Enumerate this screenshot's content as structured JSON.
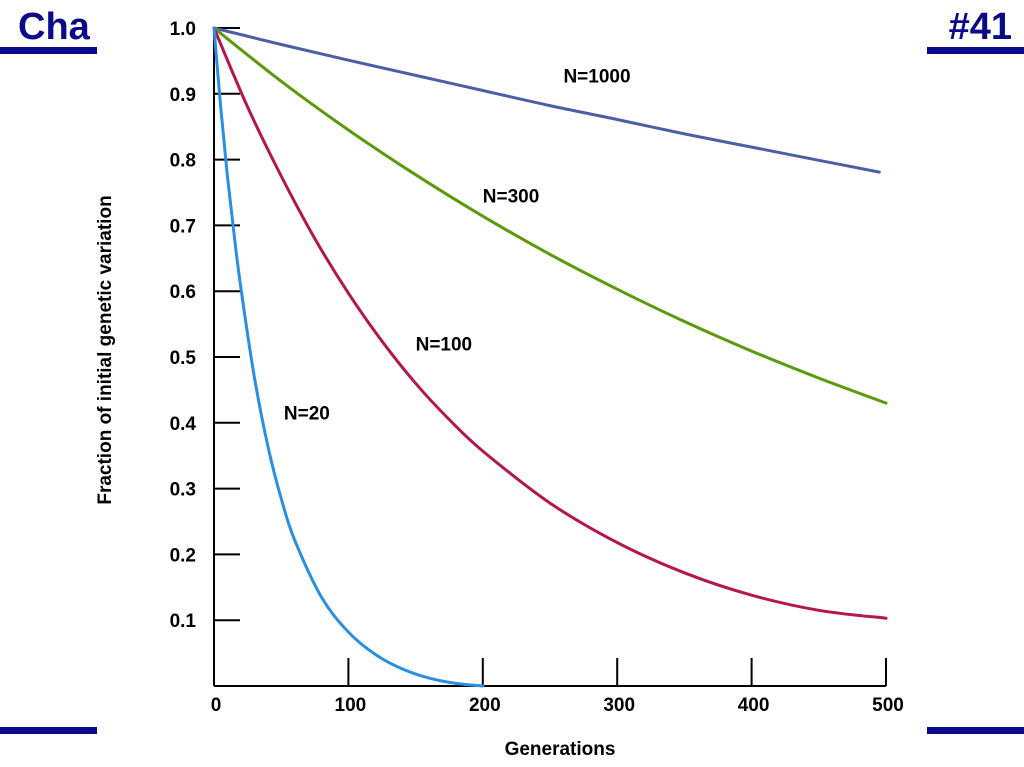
{
  "header": {
    "left_text": "Cha",
    "right_text": "#41",
    "text_color": "#0a0a8a",
    "rule_color": "#0a0a8a"
  },
  "chart_data": {
    "type": "line",
    "title": "",
    "xlabel": "Generations",
    "ylabel": "Fraction of initial genetic variation",
    "xlim": [
      0,
      500
    ],
    "ylim": [
      0,
      1.0
    ],
    "x_ticks": [
      0,
      100,
      200,
      300,
      400,
      500
    ],
    "x_tick_labels": [
      "0",
      "100",
      "200",
      "300",
      "400",
      "500"
    ],
    "y_ticks": [
      0.1,
      0.2,
      0.3,
      0.4,
      0.5,
      0.6,
      0.7,
      0.8,
      0.9,
      1.0
    ],
    "y_tick_labels": [
      "0.1",
      "0.2",
      "0.3",
      "0.4",
      "0.5",
      "0.6",
      "0.7",
      "0.8",
      "0.9",
      "1.0"
    ],
    "grid": false,
    "legend": "none",
    "series": [
      {
        "name": "N=1000",
        "color": "#4a5fa6",
        "x": [
          0,
          50,
          100,
          150,
          200,
          250,
          300,
          350,
          400,
          450,
          495
        ],
        "y": [
          1.0,
          0.975,
          0.951,
          0.928,
          0.905,
          0.882,
          0.861,
          0.839,
          0.819,
          0.799,
          0.781
        ]
      },
      {
        "name": "N=300",
        "color": "#5c9a0c",
        "x": [
          0,
          50,
          100,
          150,
          200,
          250,
          300,
          350,
          400,
          450,
          500
        ],
        "y": [
          1.0,
          0.919,
          0.845,
          0.777,
          0.714,
          0.656,
          0.603,
          0.554,
          0.509,
          0.468,
          0.43
        ]
      },
      {
        "name": "N=100",
        "color": "#b5174d",
        "x": [
          0,
          25,
          50,
          75,
          100,
          125,
          150,
          175,
          200,
          250,
          300,
          350,
          400,
          450,
          500
        ],
        "y": [
          1.0,
          0.88,
          0.775,
          0.68,
          0.597,
          0.524,
          0.46,
          0.405,
          0.357,
          0.278,
          0.218,
          0.172,
          0.138,
          0.115,
          0.103
        ]
      },
      {
        "name": "N=20",
        "color": "#2a8fe0",
        "x": [
          0,
          5,
          10,
          15,
          20,
          30,
          40,
          50,
          60,
          80,
          100,
          120,
          140,
          160,
          180,
          200
        ],
        "y": [
          1.0,
          0.88,
          0.775,
          0.685,
          0.605,
          0.47,
          0.365,
          0.285,
          0.222,
          0.135,
          0.082,
          0.048,
          0.026,
          0.012,
          0.004,
          0.0
        ]
      }
    ],
    "series_labels": [
      {
        "text": "N=1000",
        "x": 260,
        "y": 0.917
      },
      {
        "text": "N=300",
        "x": 200,
        "y": 0.735
      },
      {
        "text": "N=100",
        "x": 150,
        "y": 0.51
      },
      {
        "text": "N=20",
        "x": 52,
        "y": 0.405
      }
    ]
  }
}
